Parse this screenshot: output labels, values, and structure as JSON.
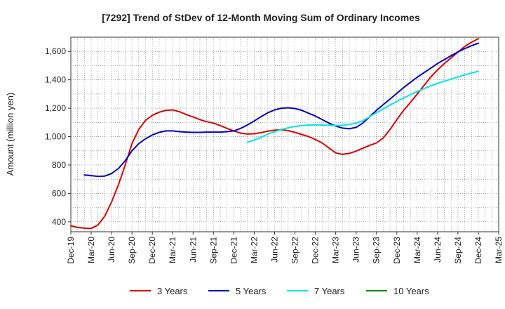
{
  "chart_data": {
    "type": "line",
    "title": "[7292]  Trend of StDev of 12-Month Moving Sum of Ordinary Incomes",
    "xlabel": "",
    "ylabel": "Amount (million yen)",
    "ylim": [
      330,
      1700
    ],
    "yticks": [
      400,
      600,
      800,
      1000,
      1200,
      1400,
      1600
    ],
    "ytick_labels": [
      "400",
      "600",
      "800",
      "1,000",
      "1,200",
      "1,400",
      "1,600"
    ],
    "x_range": [
      0,
      63
    ],
    "xticks": [
      0,
      3,
      6,
      9,
      12,
      15,
      18,
      21,
      24,
      27,
      30,
      33,
      36,
      39,
      42,
      45,
      48,
      51,
      54,
      57,
      60,
      63
    ],
    "xtick_labels": [
      "Dec-19",
      "Mar-20",
      "Jun-20",
      "Sep-20",
      "Dec-20",
      "Mar-21",
      "Jun-21",
      "Sep-21",
      "Dec-21",
      "Mar-22",
      "Jun-22",
      "Sep-22",
      "Dec-22",
      "Mar-23",
      "Jun-23",
      "Sep-23",
      "Dec-23",
      "Mar-24",
      "Jun-24",
      "Sep-24",
      "Dec-24",
      "Mar-25"
    ],
    "grid": true,
    "legend_position": "bottom",
    "series": [
      {
        "name": "3 Years",
        "color": "#dd0000",
        "x": [
          0,
          1,
          2,
          3,
          4,
          5,
          6,
          7,
          8,
          9,
          10,
          11,
          12,
          13,
          14,
          15,
          16,
          17,
          18,
          19,
          20,
          21,
          22,
          23,
          24,
          25,
          26,
          27,
          28,
          29,
          30,
          31,
          32,
          33,
          34,
          35,
          36,
          37,
          38,
          39,
          40,
          41,
          42,
          43,
          44,
          45,
          46,
          47,
          48,
          49,
          50,
          51,
          52,
          53,
          54,
          55,
          56,
          57,
          58,
          59,
          60
        ],
        "values": [
          372,
          360,
          355,
          353,
          378,
          440,
          540,
          660,
          800,
          950,
          1050,
          1115,
          1150,
          1172,
          1185,
          1188,
          1175,
          1155,
          1138,
          1120,
          1105,
          1095,
          1078,
          1058,
          1040,
          1025,
          1018,
          1020,
          1028,
          1038,
          1045,
          1048,
          1042,
          1030,
          1015,
          1000,
          980,
          955,
          920,
          885,
          875,
          882,
          898,
          918,
          938,
          955,
          990,
          1050,
          1120,
          1185,
          1240,
          1300,
          1360,
          1420,
          1470,
          1515,
          1555,
          1595,
          1635,
          1665,
          1690
        ]
      },
      {
        "name": "5 Years",
        "color": "#0000cc",
        "x": [
          2,
          3,
          4,
          5,
          6,
          7,
          8,
          9,
          10,
          11,
          12,
          13,
          14,
          15,
          16,
          17,
          18,
          19,
          20,
          21,
          22,
          23,
          24,
          25,
          26,
          27,
          28,
          29,
          30,
          31,
          32,
          33,
          34,
          35,
          36,
          37,
          38,
          39,
          40,
          41,
          42,
          43,
          44,
          45,
          46,
          47,
          48,
          49,
          50,
          51,
          52,
          53,
          54,
          55,
          56,
          57,
          58,
          59,
          60
        ],
        "values": [
          730,
          725,
          720,
          722,
          740,
          775,
          830,
          900,
          950,
          985,
          1012,
          1030,
          1040,
          1040,
          1035,
          1032,
          1030,
          1030,
          1032,
          1032,
          1032,
          1035,
          1040,
          1058,
          1082,
          1110,
          1140,
          1168,
          1188,
          1200,
          1203,
          1198,
          1185,
          1165,
          1145,
          1120,
          1095,
          1075,
          1060,
          1055,
          1065,
          1095,
          1140,
          1185,
          1225,
          1265,
          1305,
          1345,
          1382,
          1418,
          1450,
          1482,
          1515,
          1542,
          1570,
          1596,
          1620,
          1640,
          1658
        ]
      },
      {
        "name": "7 Years",
        "color": "#00e5e5",
        "x": [
          26,
          27,
          28,
          29,
          30,
          31,
          32,
          33,
          34,
          35,
          36,
          37,
          38,
          39,
          40,
          41,
          42,
          43,
          44,
          45,
          46,
          47,
          48,
          49,
          50,
          51,
          52,
          53,
          54,
          55,
          56,
          57,
          58,
          59,
          60
        ],
        "values": [
          960,
          975,
          995,
          1018,
          1035,
          1050,
          1062,
          1072,
          1078,
          1082,
          1083,
          1082,
          1080,
          1078,
          1080,
          1085,
          1095,
          1112,
          1140,
          1168,
          1195,
          1222,
          1248,
          1272,
          1295,
          1318,
          1338,
          1358,
          1375,
          1390,
          1405,
          1420,
          1435,
          1448,
          1460
        ]
      },
      {
        "name": "10 Years",
        "color": "#008800",
        "x": [],
        "values": []
      }
    ]
  }
}
